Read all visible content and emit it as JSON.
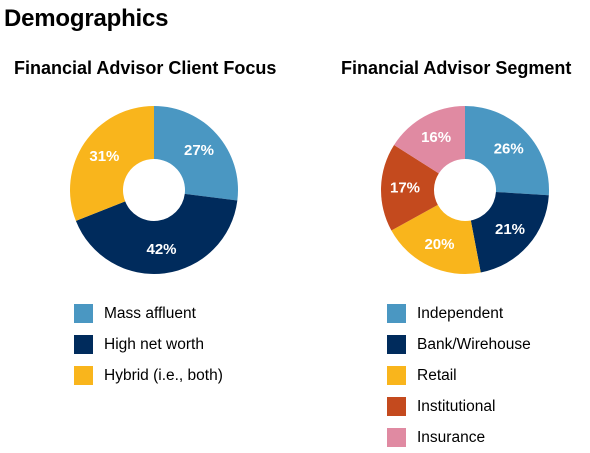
{
  "page": {
    "title": "Demographics"
  },
  "chart_data": [
    {
      "type": "pie",
      "variant": "donut",
      "title": "Financial Advisor Client Focus",
      "categories": [
        "Mass affluent",
        "High net worth",
        "Hybrid (i.e., both)"
      ],
      "values": [
        27,
        42,
        31
      ],
      "value_labels": [
        "27%",
        "42%",
        "31%"
      ],
      "colors": [
        "#4A97C2",
        "#002B5C",
        "#F9B51C"
      ],
      "legend_position": "bottom"
    },
    {
      "type": "pie",
      "variant": "donut",
      "title": "Financial Advisor Segment",
      "categories": [
        "Independent",
        "Bank/Wirehouse",
        "Retail",
        "Institutional",
        "Insurance"
      ],
      "values": [
        26,
        21,
        20,
        17,
        16
      ],
      "value_labels": [
        "26%",
        "21%",
        "20%",
        "17%",
        "16%"
      ],
      "colors": [
        "#4A97C2",
        "#002B5C",
        "#F9B51C",
        "#C44A1E",
        "#E08AA2"
      ],
      "legend_position": "bottom"
    }
  ]
}
